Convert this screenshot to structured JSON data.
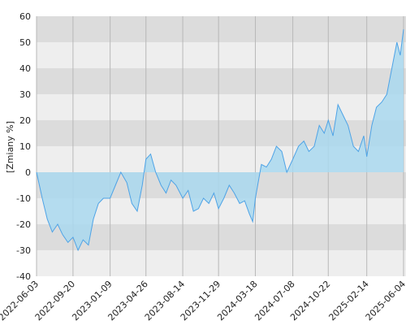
{
  "chart_data": {
    "type": "area",
    "ylabel": "[Zmiany %]",
    "ylim": [
      -40,
      60
    ],
    "y_ticks": [
      60,
      50,
      40,
      30,
      20,
      10,
      0,
      -10,
      -20,
      -30,
      -40
    ],
    "x_ticks": [
      "2022-06-03",
      "2022-09-20",
      "2023-01-09",
      "2023-04-26",
      "2023-08-14",
      "2023-11-29",
      "2024-03-18",
      "2024-07-08",
      "2024-10-22",
      "2025-02-14",
      "2025-06-04"
    ],
    "x_range": [
      "2022-06-03",
      "2025-06-04"
    ],
    "grid": "horizontal bands and vertical lines",
    "colors": {
      "line": "#4ea3e6",
      "area_above": "#a9d8ee",
      "area_below": "#b9d6e6",
      "band_dark": "#dcdcdc",
      "band_light": "#eeeeee",
      "vgrid": "#b8b8b8"
    },
    "series": [
      {
        "x": [
          "2022-06-03",
          "2022-06-20",
          "2022-07-05",
          "2022-07-20",
          "2022-08-05",
          "2022-08-20",
          "2022-09-05",
          "2022-09-20",
          "2022-10-05",
          "2022-10-20",
          "2022-11-05",
          "2022-11-20",
          "2022-12-05",
          "2022-12-20",
          "2023-01-09",
          "2023-01-25",
          "2023-02-10",
          "2023-02-28",
          "2023-03-15",
          "2023-03-31",
          "2023-04-15",
          "2023-04-26",
          "2023-05-10",
          "2023-05-25",
          "2023-06-10",
          "2023-06-25",
          "2023-07-10",
          "2023-07-25",
          "2023-08-14",
          "2023-08-30",
          "2023-09-15",
          "2023-09-30",
          "2023-10-15",
          "2023-10-31",
          "2023-11-15",
          "2023-11-29",
          "2023-12-15",
          "2023-12-31",
          "2024-01-15",
          "2024-01-31",
          "2024-02-15",
          "2024-02-29",
          "2024-03-10",
          "2024-03-18",
          "2024-04-05",
          "2024-04-20",
          "2024-05-05",
          "2024-05-20",
          "2024-06-05",
          "2024-06-20",
          "2024-07-08",
          "2024-07-25",
          "2024-08-10",
          "2024-08-25",
          "2024-09-10",
          "2024-09-25",
          "2024-10-10",
          "2024-10-22",
          "2024-11-05",
          "2024-11-20",
          "2024-12-05",
          "2024-12-20",
          "2025-01-05",
          "2025-01-20",
          "2025-02-05",
          "2025-02-14",
          "2025-03-01",
          "2025-03-15",
          "2025-03-31",
          "2025-04-15",
          "2025-04-30",
          "2025-05-15",
          "2025-05-25",
          "2025-06-04"
        ],
        "y": [
          0,
          -10,
          -18,
          -23,
          -20,
          -24,
          -27,
          -25,
          -30,
          -26,
          -28,
          -18,
          -12,
          -10,
          -10,
          -5,
          0,
          -4,
          -12,
          -15,
          -5,
          5,
          7,
          0,
          -5,
          -8,
          -3,
          -5,
          -10,
          -7,
          -15,
          -14,
          -10,
          -12,
          -8,
          -14,
          -10,
          -5,
          -8,
          -12,
          -11,
          -16,
          -19,
          -10,
          3,
          2,
          5,
          10,
          8,
          0,
          5,
          10,
          12,
          8,
          10,
          18,
          15,
          20,
          14,
          26,
          22,
          18,
          10,
          8,
          14,
          6,
          18,
          25,
          27,
          30,
          40,
          50,
          45,
          55
        ]
      }
    ]
  }
}
